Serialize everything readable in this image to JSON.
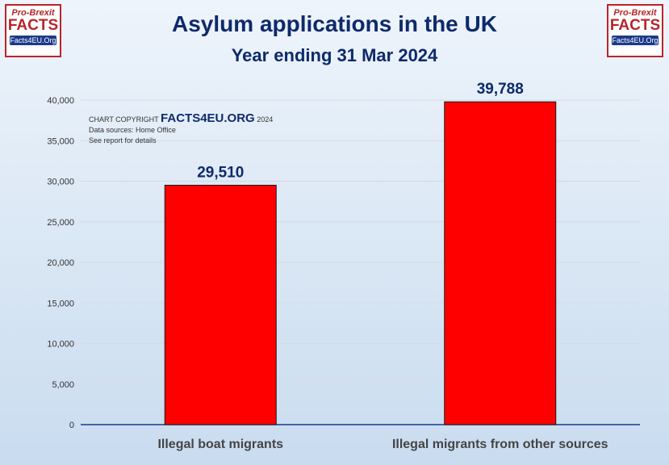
{
  "logo": {
    "line1": "Pro-Brexit",
    "line2": "FACTS",
    "line3": "Facts4EU.Org"
  },
  "copyright": {
    "prefix": "CHART COPYRIGHT",
    "brand": "FACTS4EU.ORG",
    "year": "2024",
    "sources": "Data sources: Home Office",
    "details": "See report for details"
  },
  "colors": {
    "bar": "#ff0000",
    "title": "#0e2a6b",
    "axis": "#1b3a8a"
  },
  "chart_data": {
    "type": "bar",
    "title": "Asylum applications in the UK",
    "subtitle": "Year ending 31 Mar 2024",
    "categories": [
      "Illegal boat migrants",
      "Illegal migrants from other sources"
    ],
    "values": [
      29510,
      39788
    ],
    "data_labels": [
      "29,510",
      "39,788"
    ],
    "yticks": [
      "0",
      "5,000",
      "10,000",
      "15,000",
      "20,000",
      "25,000",
      "30,000",
      "35,000",
      "40,000"
    ],
    "ylim": [
      0,
      40000
    ],
    "grid": true,
    "legend": "none"
  }
}
